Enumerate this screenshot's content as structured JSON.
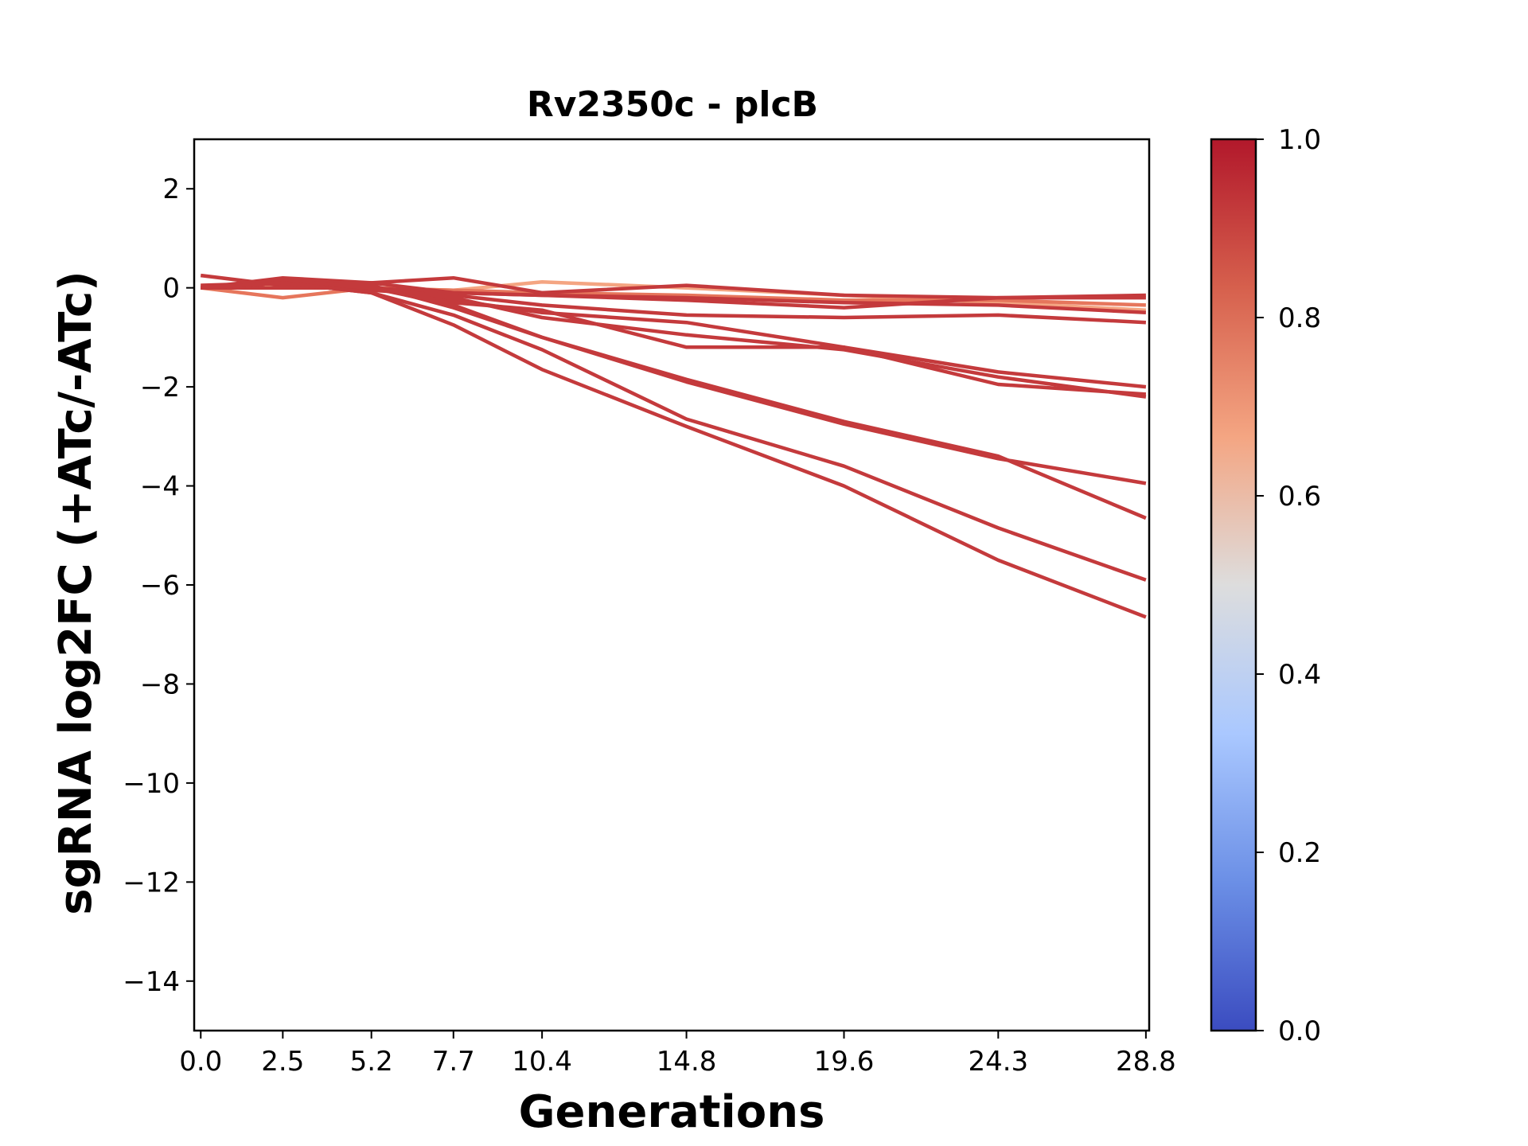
{
  "chart_data": {
    "type": "line",
    "title": "Rv2350c - plcB",
    "xlabel": "Generations",
    "ylabel": "sgRNA log2FC (+ATc/-ATc)",
    "x": [
      0.0,
      2.5,
      5.2,
      7.7,
      10.4,
      14.8,
      19.6,
      24.3,
      28.8
    ],
    "x_tick_labels": [
      "0.0",
      "2.5",
      "5.2",
      "7.7",
      "10.4",
      "14.8",
      "19.6",
      "24.3",
      "28.8"
    ],
    "xlim": [
      -0.2,
      28.9
    ],
    "ylim": [
      -15,
      3
    ],
    "y_ticks": [
      2,
      0,
      -2,
      -4,
      -6,
      -8,
      -10,
      -12,
      -14
    ],
    "y_tick_labels": [
      "2",
      "0",
      "−2",
      "−4",
      "−6",
      "−8",
      "−10",
      "−12",
      "−14"
    ],
    "grid": false,
    "series": [
      {
        "color": "#f4a582",
        "values": [
          0.05,
          0.0,
          0.0,
          -0.05,
          0.12,
          0.0,
          -0.15,
          -0.3,
          -0.45
        ]
      },
      {
        "color": "#e6765c",
        "values": [
          0.0,
          -0.2,
          0.0,
          -0.05,
          -0.1,
          -0.15,
          -0.25,
          -0.25,
          -0.35
        ]
      },
      {
        "color": "#c43a3c",
        "values": [
          0.0,
          0.2,
          0.1,
          -0.1,
          -0.15,
          -0.25,
          -0.4,
          -0.2,
          -0.2
        ]
      },
      {
        "color": "#c43a3c",
        "values": [
          0.0,
          0.0,
          0.0,
          -0.1,
          -0.15,
          -0.2,
          -0.3,
          -0.35,
          -0.5
        ]
      },
      {
        "color": "#c43a3c",
        "values": [
          0.0,
          0.1,
          0.1,
          0.2,
          -0.1,
          0.05,
          -0.15,
          -0.2,
          -0.15
        ]
      },
      {
        "color": "#c43a3c",
        "values": [
          0.25,
          0.05,
          -0.05,
          -0.15,
          -0.35,
          -0.55,
          -0.6,
          -0.55,
          -0.7
        ]
      },
      {
        "color": "#c43a3c",
        "values": [
          0.05,
          0.1,
          0.0,
          -0.25,
          -0.5,
          -0.7,
          -1.2,
          -1.7,
          -2.0
        ]
      },
      {
        "color": "#c43a3c",
        "values": [
          0.0,
          0.1,
          0.0,
          -0.2,
          -0.6,
          -0.95,
          -1.25,
          -1.8,
          -2.2
        ]
      },
      {
        "color": "#c43a3c",
        "values": [
          0.0,
          0.1,
          0.0,
          -0.3,
          -0.45,
          -1.2,
          -1.2,
          -1.95,
          -2.15
        ]
      },
      {
        "color": "#c43a3c",
        "values": [
          0.0,
          0.1,
          0.05,
          -0.4,
          -1.0,
          -1.85,
          -2.7,
          -3.4,
          -4.65
        ]
      },
      {
        "color": "#c43a3c",
        "values": [
          0.0,
          0.15,
          0.0,
          -0.35,
          -1.0,
          -1.9,
          -2.75,
          -3.45,
          -3.95
        ]
      },
      {
        "color": "#c43a3c",
        "values": [
          0.0,
          0.1,
          -0.1,
          -0.55,
          -1.25,
          -2.65,
          -3.6,
          -4.85,
          -5.9
        ]
      },
      {
        "color": "#c43a3c",
        "values": [
          0.0,
          0.1,
          -0.1,
          -0.75,
          -1.65,
          -2.8,
          -4.0,
          -5.5,
          -6.65
        ]
      }
    ],
    "colorbar": {
      "range": [
        0.0,
        1.0
      ],
      "ticks": [
        "1.0",
        "0.8",
        "0.6",
        "0.4",
        "0.2",
        "0.0"
      ],
      "colors": [
        "#b2182b",
        "#d6604d",
        "#f4a582",
        "#dddddd",
        "#aac8ff",
        "#6b8fe6",
        "#3b4cc0"
      ]
    }
  }
}
